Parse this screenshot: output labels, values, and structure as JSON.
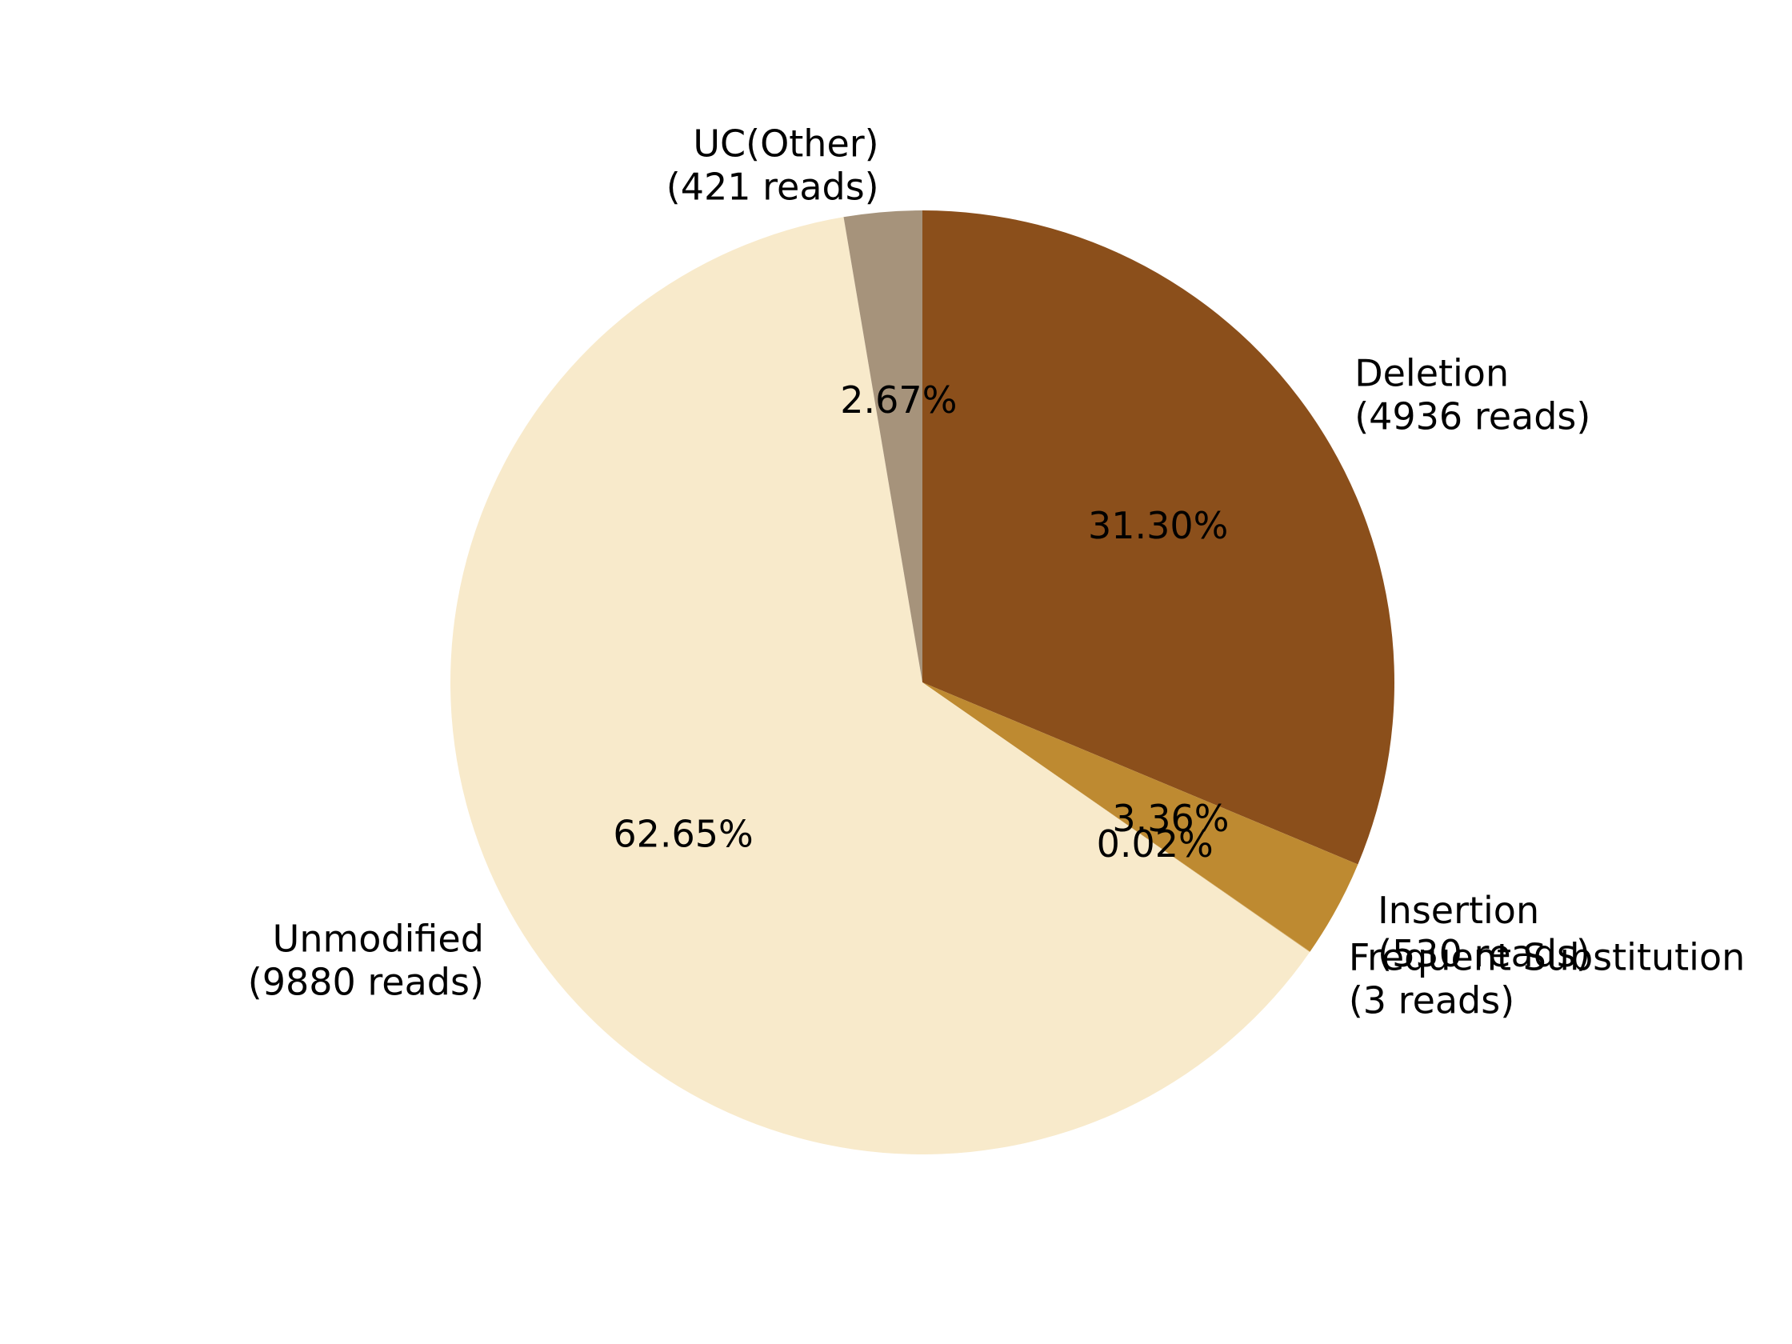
{
  "chart_data": {
    "type": "pie",
    "start_angle_deg": 90,
    "direction": "clockwise",
    "slices": [
      {
        "name": "Deletion",
        "reads_label": "(4936 reads)",
        "value": 4936,
        "percent_label": "31.30%",
        "color": "#8B4F1B"
      },
      {
        "name": "Insertion",
        "reads_label": "(530 reads)",
        "value": 530,
        "percent_label": "3.36%",
        "color": "#BE8A31"
      },
      {
        "name": "Frequent Substitution",
        "reads_label": "(3 reads)",
        "value": 3,
        "percent_label": "0.02%",
        "color": "#D4A95C"
      },
      {
        "name": "Unmodified",
        "reads_label": "(9880 reads)",
        "value": 9880,
        "percent_label": "62.65%",
        "color": "#F8EACB"
      },
      {
        "name": "UC(Other)",
        "reads_label": "(421 reads)",
        "value": 421,
        "percent_label": "2.67%",
        "color": "#A6937B"
      }
    ]
  }
}
